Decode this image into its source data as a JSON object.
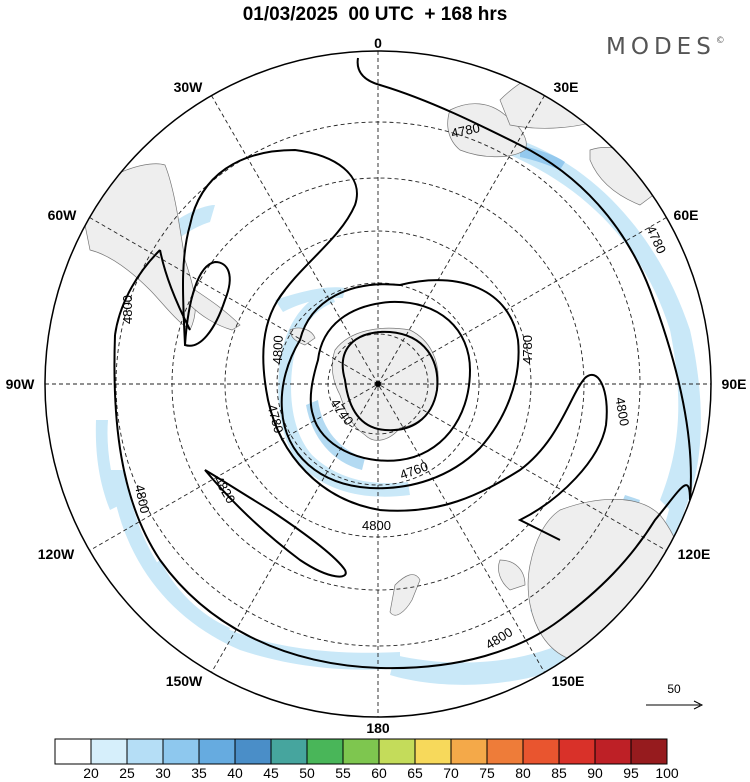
{
  "title": "01/03/2025  00 UTC  + 168 hrs",
  "brand": {
    "text": "MODES",
    "mark": "©"
  },
  "longitude_labels": {
    "lon_0": "0",
    "lon_30e": "30E",
    "lon_60e": "60E",
    "lon_90e": "90E",
    "lon_120e": "120E",
    "lon_150e": "150E",
    "lon_180": "180",
    "lon_150w": "150W",
    "lon_120w": "120W",
    "lon_90w": "90W",
    "lon_60w": "60W",
    "lon_30w": "30W"
  },
  "contour_labels": {
    "c1": "4780",
    "c2": "4780",
    "c3": "4800",
    "c4": "4800",
    "c5": "4780",
    "c6": "4740",
    "c7": "4780",
    "c8": "4760",
    "c9": "4800",
    "c10": "4800",
    "c11": "4820",
    "c12": "4800",
    "c13": "4800"
  },
  "wind_reference": {
    "label": "50"
  },
  "colorbar": {
    "ticks": [
      "20",
      "25",
      "30",
      "35",
      "40",
      "45",
      "50",
      "55",
      "60",
      "65",
      "70",
      "75",
      "80",
      "85",
      "90",
      "95",
      "100"
    ],
    "colors": [
      "#ffffff",
      "#d6effb",
      "#b5def6",
      "#8ec8ee",
      "#66abe0",
      "#4a8ec8",
      "#46a59e",
      "#49b659",
      "#7ec64f",
      "#c4dc5a",
      "#f7d95b",
      "#f4a949",
      "#ee7c39",
      "#e9552f",
      "#d93129",
      "#be2026",
      "#961b1e"
    ]
  },
  "map_features": {
    "projection": "south-polar-stereographic",
    "contour_field": "geopotential height",
    "shading_field": "wind speed",
    "icons": [
      "pole-dot-icon",
      "wind-reference-arrow-icon"
    ]
  }
}
